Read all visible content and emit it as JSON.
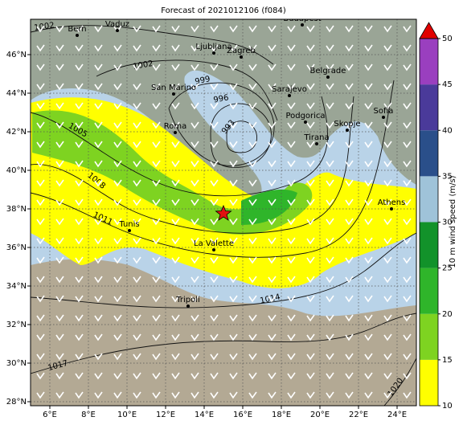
{
  "title": "Forecast of 2021012106 (f084)",
  "lon_ticks": [
    {
      "value": 6,
      "label": "6°E"
    },
    {
      "value": 8,
      "label": "8°E"
    },
    {
      "value": 10,
      "label": "10°E"
    },
    {
      "value": 12,
      "label": "12°E"
    },
    {
      "value": 14,
      "label": "14°E"
    },
    {
      "value": 16,
      "label": "16°E"
    },
    {
      "value": 18,
      "label": "18°E"
    },
    {
      "value": 20,
      "label": "20°E"
    },
    {
      "value": 22,
      "label": "22°E"
    },
    {
      "value": 24,
      "label": "24°E"
    }
  ],
  "lat_ticks": [
    {
      "value": 28,
      "label": "28°N"
    },
    {
      "value": 30,
      "label": "30°N"
    },
    {
      "value": 32,
      "label": "32°N"
    },
    {
      "value": 34,
      "label": "34°N"
    },
    {
      "value": 36,
      "label": "36°N"
    },
    {
      "value": 38,
      "label": "38°N"
    },
    {
      "value": 40,
      "label": "40°N"
    },
    {
      "value": 42,
      "label": "42°N"
    },
    {
      "value": 44,
      "label": "44°N"
    },
    {
      "value": 46,
      "label": "46°N"
    }
  ],
  "cities": [
    "Bern",
    "Vaduz",
    "Budapest",
    "Ljubljana",
    "Zagreb",
    "Belgrade",
    "San Marino",
    "Sarajevo",
    "Podgorica",
    "Skopje",
    "Sofia",
    "Tirana",
    "Roma",
    "Tunis",
    "Athens",
    "La Valette",
    "Tripoli"
  ],
  "isobars": [
    1002,
    1002,
    999,
    996,
    993,
    1005,
    1008,
    1011,
    1014,
    1017,
    1020
  ],
  "colorbar": {
    "label": "10 m wind speed (m/s)",
    "ticks": [
      10,
      15,
      20,
      25,
      30,
      35,
      40,
      45,
      50
    ],
    "colors": [
      "#ffff00",
      "#7ed321",
      "#2fb52a",
      "#12922a",
      "#9fc3d9",
      "#2a4f8a",
      "#4a3a9a",
      "#9a3fbf"
    ],
    "extend_color": "#e00000"
  }
}
